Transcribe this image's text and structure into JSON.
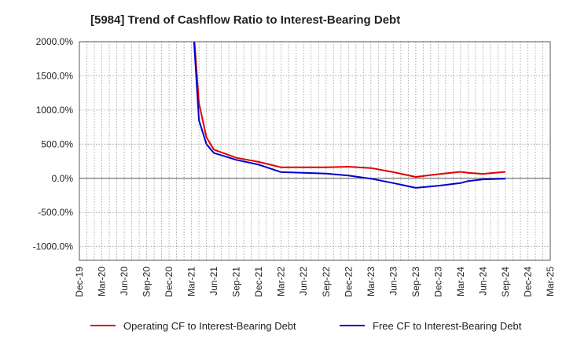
{
  "chart_data": {
    "type": "line",
    "title": "[5984]  Trend of Cashflow Ratio to Interest-Bearing Debt",
    "xlabel": "",
    "ylabel": "",
    "x_ticks": [
      "Dec-19",
      "Mar-20",
      "Jun-20",
      "Sep-20",
      "Dec-20",
      "Mar-21",
      "Jun-21",
      "Sep-21",
      "Dec-21",
      "Mar-22",
      "Jun-22",
      "Sep-22",
      "Dec-22",
      "Mar-23",
      "Jun-23",
      "Sep-23",
      "Dec-23",
      "Mar-24",
      "Jun-24",
      "Sep-24",
      "Dec-24",
      "Mar-25"
    ],
    "y_ticks": [
      "2000.0%",
      "1500.0%",
      "1000.0%",
      "500.0%",
      "0.0%",
      "-500.0%",
      "-1000.0%"
    ],
    "ylim": [
      -1200,
      2000
    ],
    "grid": true,
    "legend_position": "bottom",
    "series": [
      {
        "name": "Operating CF to Interest-Bearing Debt",
        "color": "#e00000",
        "points": [
          [
            "Mar-21",
            2600
          ],
          [
            "Apr-21",
            1100
          ],
          [
            "May-21",
            600
          ],
          [
            "Jun-21",
            420
          ],
          [
            "Sep-21",
            300
          ],
          [
            "Dec-21",
            240
          ],
          [
            "Mar-22",
            160
          ],
          [
            "Jun-22",
            160
          ],
          [
            "Sep-22",
            160
          ],
          [
            "Dec-22",
            170
          ],
          [
            "Mar-23",
            150
          ],
          [
            "Jun-23",
            90
          ],
          [
            "Sep-23",
            20
          ],
          [
            "Dec-23",
            60
          ],
          [
            "Mar-24",
            95
          ],
          [
            "Apr-24",
            80
          ],
          [
            "Jun-24",
            65
          ],
          [
            "Sep-24",
            95
          ]
        ]
      },
      {
        "name": "Free CF to Interest-Bearing Debt",
        "color": "#0000cc",
        "points": [
          [
            "Mar-21",
            2600
          ],
          [
            "Apr-21",
            850
          ],
          [
            "May-21",
            500
          ],
          [
            "Jun-21",
            370
          ],
          [
            "Sep-21",
            270
          ],
          [
            "Dec-21",
            200
          ],
          [
            "Mar-22",
            90
          ],
          [
            "Jun-22",
            80
          ],
          [
            "Sep-22",
            70
          ],
          [
            "Dec-22",
            40
          ],
          [
            "Mar-23",
            -5
          ],
          [
            "Jun-23",
            -70
          ],
          [
            "Sep-23",
            -140
          ],
          [
            "Dec-23",
            -110
          ],
          [
            "Mar-24",
            -70
          ],
          [
            "Apr-24",
            -40
          ],
          [
            "Jun-24",
            -15
          ],
          [
            "Sep-24",
            -5
          ]
        ]
      }
    ]
  }
}
